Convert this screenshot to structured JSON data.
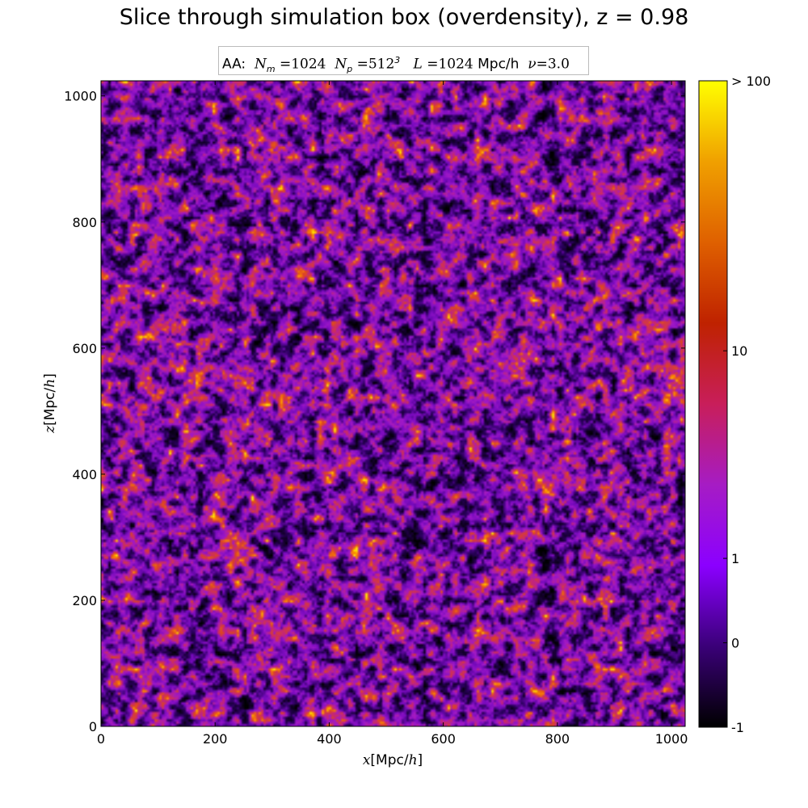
{
  "chart_data": {
    "type": "heatmap",
    "title": "Slice through simulation box (overdensity), z = 0.98",
    "legend": {
      "prefix": "AA:",
      "nm_symbol": "N",
      "nm_sub": "m",
      "nm_value": "1024",
      "np_symbol": "N",
      "np_sub": "p",
      "np_value": "512",
      "np_exp": "3",
      "l_symbol": "L",
      "l_value": "1024",
      "l_unit": "Mpc/h",
      "nu_symbol": "ν",
      "nu_value": "3.0",
      "placement": "top-center"
    },
    "xlabel": {
      "var": "x",
      "unit_pre": "[Mpc/",
      "unit_var": "h",
      "unit_post": "]"
    },
    "ylabel": {
      "var": "z",
      "unit_pre": "[Mpc/",
      "unit_var": "h",
      "unit_post": "]"
    },
    "xlim": [
      0,
      1024
    ],
    "ylim": [
      0,
      1024
    ],
    "x_ticks": [
      {
        "value": 0,
        "label": "0"
      },
      {
        "value": 200,
        "label": "200"
      },
      {
        "value": 400,
        "label": "400"
      },
      {
        "value": 600,
        "label": "600"
      },
      {
        "value": 800,
        "label": "800"
      },
      {
        "value": 1000,
        "label": "1000"
      }
    ],
    "y_ticks": [
      {
        "value": 0,
        "label": "0"
      },
      {
        "value": 200,
        "label": "200"
      },
      {
        "value": 400,
        "label": "400"
      },
      {
        "value": 600,
        "label": "600"
      },
      {
        "value": 800,
        "label": "800"
      },
      {
        "value": 1000,
        "label": "1000"
      }
    ],
    "grid": false,
    "colorbar": {
      "scale": "symlog",
      "ticks": [
        {
          "value": -1,
          "label": "-1"
        },
        {
          "value": 0,
          "label": "0"
        },
        {
          "value": 1,
          "label": "1"
        },
        {
          "value": 10,
          "label": "10"
        },
        {
          "value": 100,
          "label": "> 100"
        }
      ],
      "colormap": "gnuplot-like",
      "color_stops": [
        "#000000",
        "#3a0078",
        "#8b00ff",
        "#a61cc4",
        "#c81e5a",
        "#bf2200",
        "#df6000",
        "#f0a000",
        "#ffff00"
      ]
    },
    "field_description_colors": {
      "low": "#000000",
      "mid": "#9b19c9",
      "high": "#ff6a00"
    }
  }
}
